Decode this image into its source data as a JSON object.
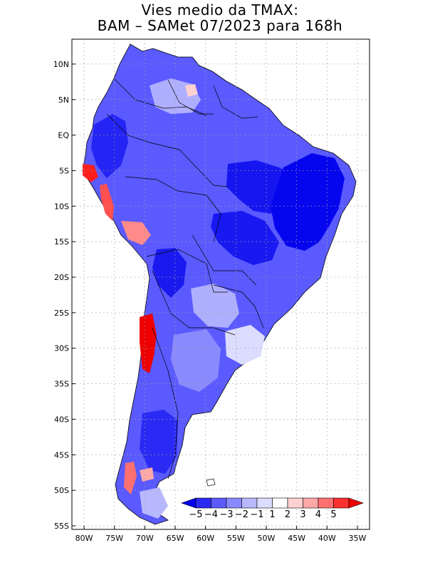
{
  "title": {
    "line1": "Vies medio da TMAX:",
    "line2": "BAM – SAMet 07/2023  para 168h"
  },
  "axes": {
    "lat_labels": [
      "10N",
      "5N",
      "EQ",
      "5S",
      "10S",
      "15S",
      "20S",
      "25S",
      "30S",
      "35S",
      "40S",
      "45S",
      "50S",
      "55S"
    ],
    "lat_values": [
      10,
      5,
      0,
      -5,
      -10,
      -15,
      -20,
      -25,
      -30,
      -35,
      -40,
      -45,
      -50,
      -55
    ],
    "lon_labels": [
      "80W",
      "75W",
      "70W",
      "65W",
      "60W",
      "55W",
      "50W",
      "45W",
      "40W",
      "35W"
    ],
    "lon_values": [
      -80,
      -75,
      -70,
      -65,
      -60,
      -55,
      -50,
      -45,
      -40,
      -35
    ],
    "lon_range": [
      -82,
      -33
    ],
    "lat_range": [
      -55.5,
      13.5
    ]
  },
  "colorbar": {
    "labels": [
      "−5",
      "−4",
      "−3",
      "−2",
      "−1",
      "1",
      "2",
      "3",
      "4",
      "5"
    ],
    "colors": [
      "#0000ee",
      "#2a2af4",
      "#5a5aff",
      "#8a8aff",
      "#b8b8ff",
      "#dcdcff",
      "#ffffff",
      "#ffd0d0",
      "#ffa8a8",
      "#ff7070",
      "#ff3030",
      "#ee0000"
    ]
  },
  "colors": {
    "land_base": "#5a5aff",
    "strong_cold": "#1212ee",
    "mild": "#b8b8ff",
    "warm": "#ff3030",
    "grid": "#a0a0a0"
  }
}
